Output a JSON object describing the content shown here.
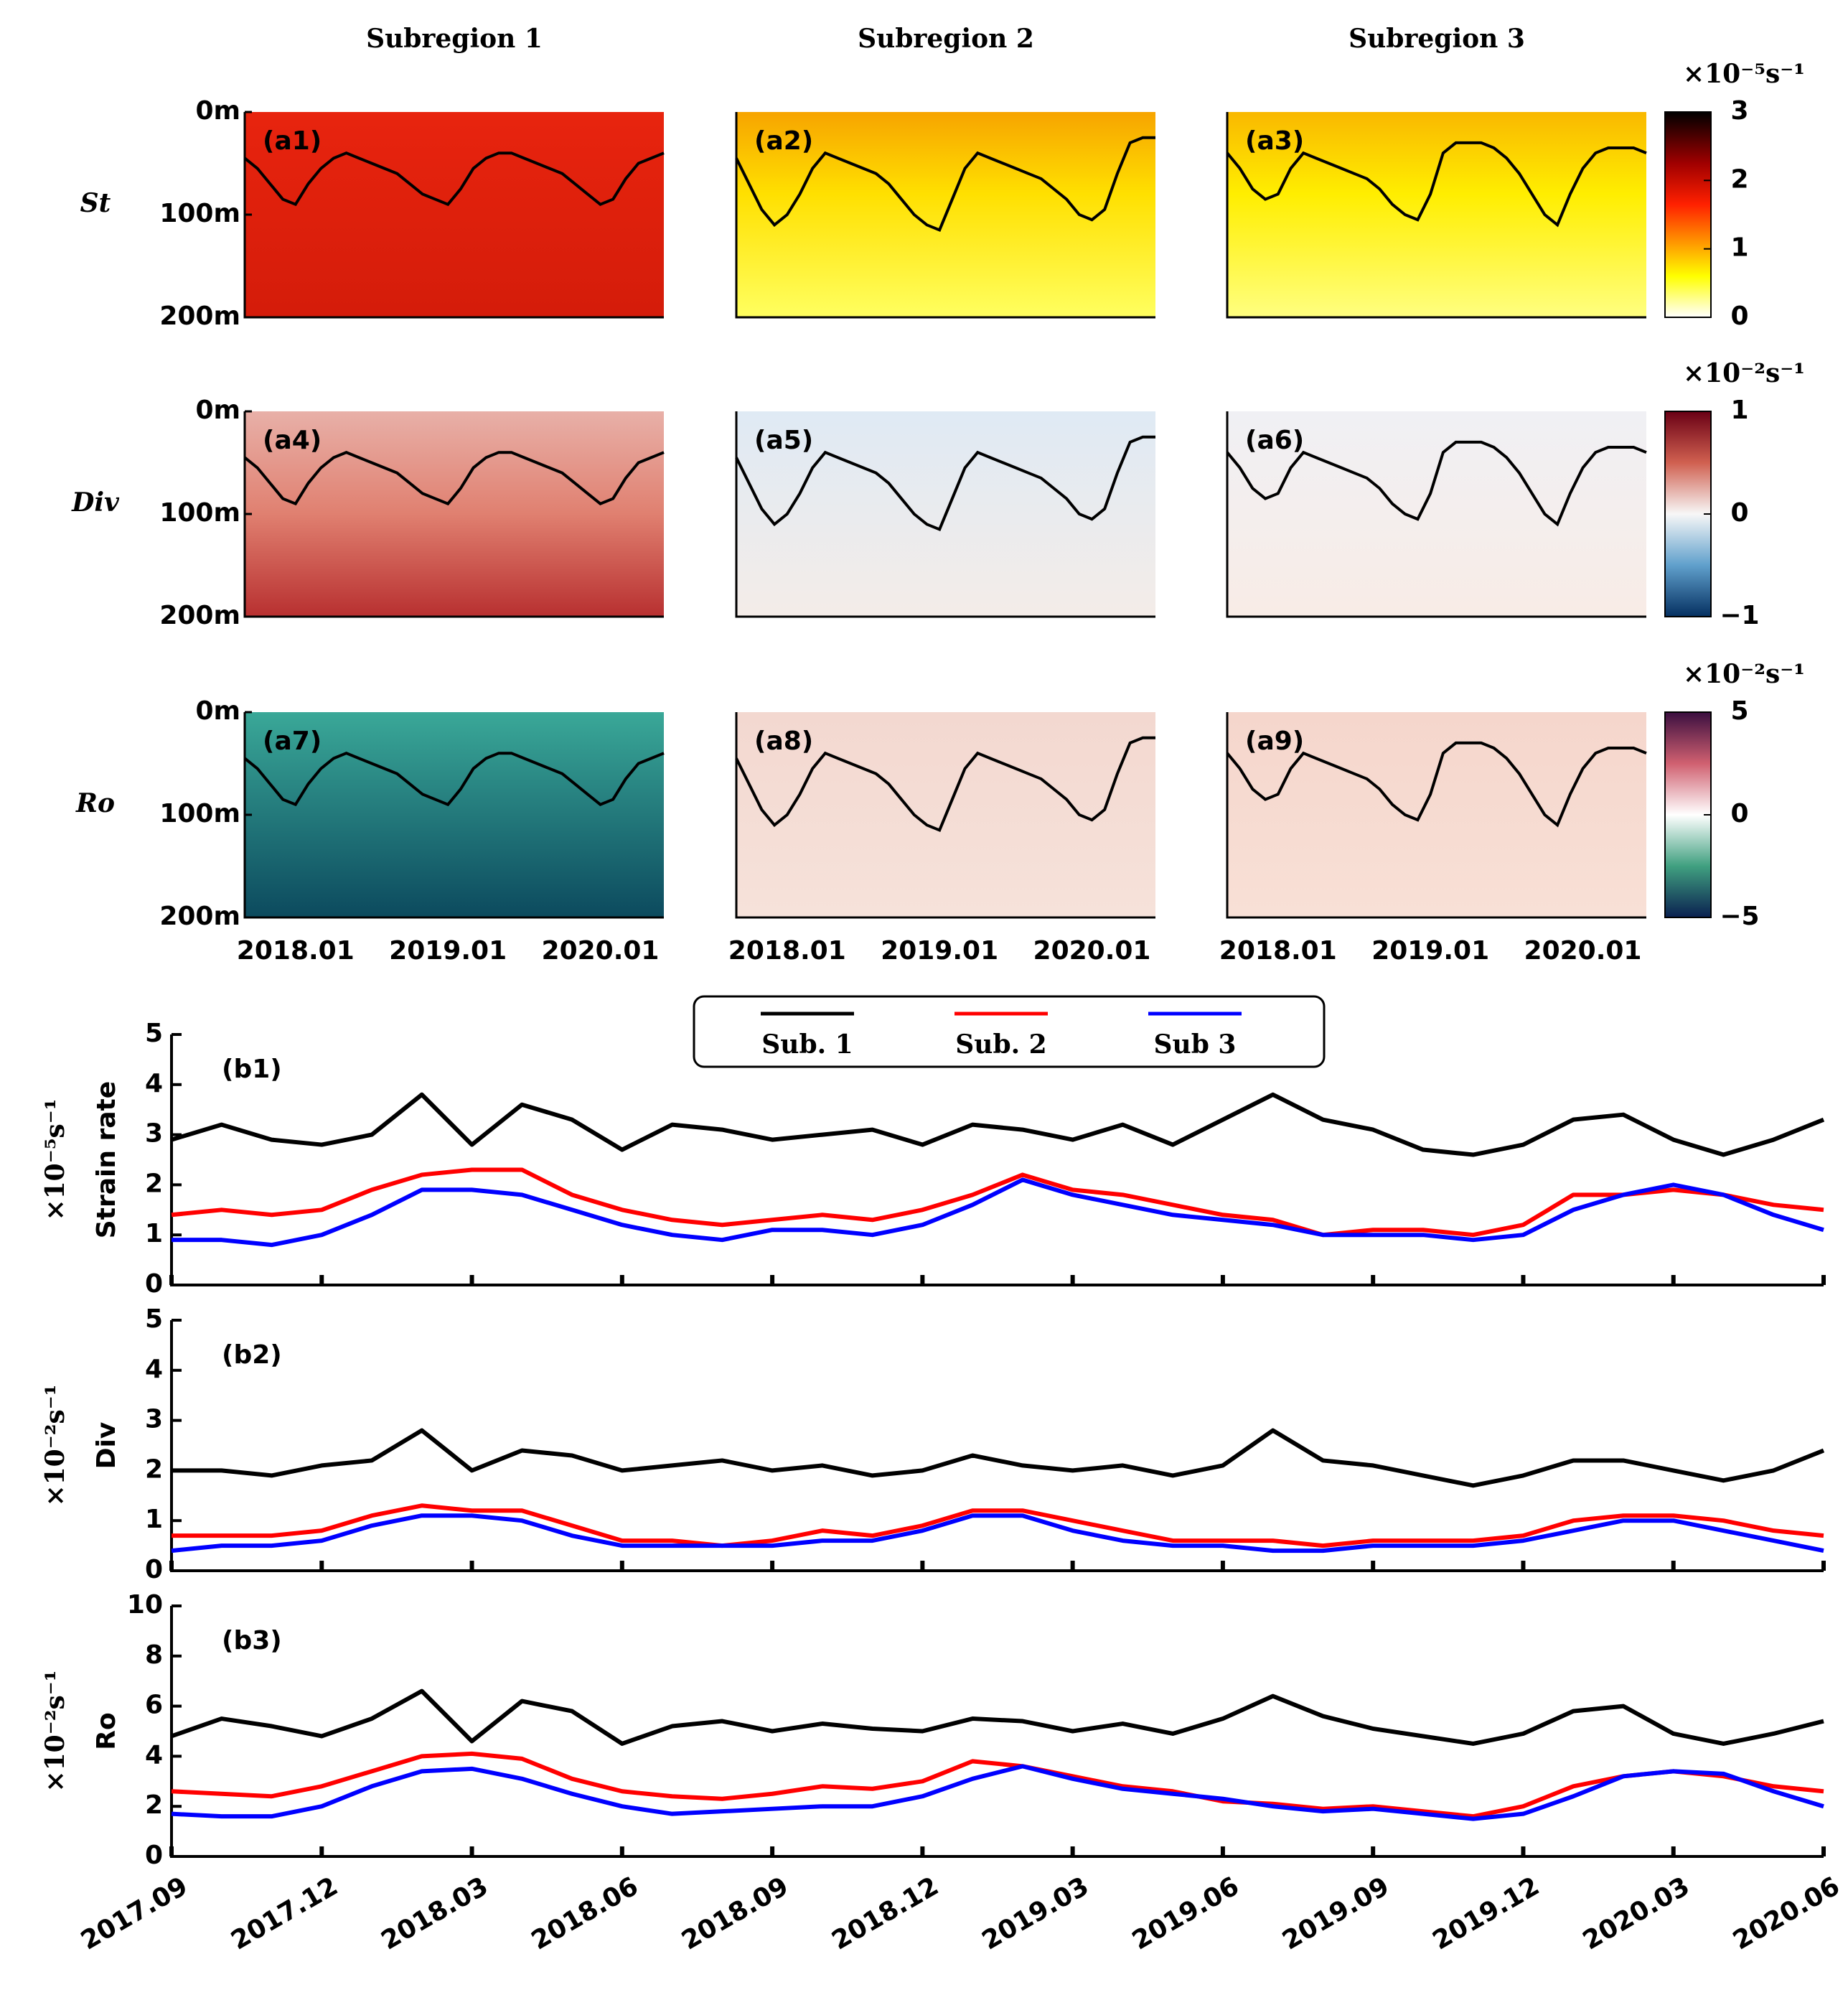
{
  "chart_data": [
    {
      "type": "heatmap",
      "titles": [
        "Subregion 1",
        "Subregion 2",
        "Subregion 3"
      ],
      "row_labels": [
        "St",
        "Div",
        "Ro"
      ],
      "panel_labels": [
        "(a1)",
        "(a2)",
        "(a3)",
        "(a4)",
        "(a5)",
        "(a6)",
        "(a7)",
        "(a8)",
        "(a9)"
      ],
      "categories": [
        null,
        null,
        null,
        null,
        "2018.01",
        null,
        null,
        null,
        null,
        null,
        null,
        null,
        null,
        null,
        null,
        null,
        "2019.01",
        null,
        null,
        null,
        null,
        null,
        null,
        null,
        null,
        null,
        null,
        null,
        "2020.01",
        null,
        null,
        null,
        null,
        null
      ],
      "ylim": [
        0,
        200
      ],
      "yticks": [
        {
          "value": 0,
          "label": "0m"
        },
        {
          "value": 100,
          "label": "100m"
        },
        {
          "value": 200,
          "label": "200m"
        }
      ],
      "mld": [
        {
          "values": [
            45,
            55,
            70,
            85,
            90,
            70,
            55,
            45,
            40,
            45,
            50,
            55,
            60,
            70,
            80,
            85,
            90,
            75,
            55,
            45,
            40,
            40,
            45,
            50,
            55,
            60,
            70,
            80,
            90,
            85,
            65,
            50,
            45,
            40
          ]
        },
        {
          "values": [
            45,
            70,
            95,
            110,
            100,
            80,
            55,
            40,
            45,
            50,
            55,
            60,
            70,
            85,
            100,
            110,
            115,
            85,
            55,
            40,
            45,
            50,
            55,
            60,
            65,
            75,
            85,
            100,
            105,
            95,
            60,
            30,
            25,
            25
          ]
        },
        {
          "values": [
            40,
            55,
            75,
            85,
            80,
            55,
            40,
            45,
            50,
            55,
            60,
            65,
            75,
            90,
            100,
            105,
            80,
            40,
            30,
            30,
            30,
            35,
            45,
            60,
            80,
            100,
            110,
            80,
            55,
            40,
            35,
            35,
            35,
            40
          ]
        }
      ],
      "colorbars": [
        {
          "unit": "×10⁻⁵s⁻¹",
          "lim": [
            0,
            3
          ],
          "ticks": [
            0,
            1,
            2,
            3
          ]
        },
        {
          "unit": "×10⁻²s⁻¹",
          "lim": [
            -1,
            1
          ],
          "ticks": [
            {
              "value": -1,
              "label": "−1"
            },
            0,
            1
          ]
        },
        {
          "unit": "×10⁻²s⁻¹",
          "lim": [
            -5,
            5
          ],
          "ticks": [
            {
              "value": -5,
              "label": "−5"
            },
            0,
            5
          ]
        }
      ]
    },
    {
      "type": "line",
      "series": [
        {
          "name": "Sub. 1",
          "color": "#000000"
        },
        {
          "name": "Sub. 2",
          "color": "#ff0000"
        },
        {
          "name": "Sub 3",
          "color": "#0000ff"
        }
      ],
      "categories": [
        "2017.09",
        null,
        null,
        "2017.12",
        null,
        null,
        "2018.03",
        null,
        null,
        "2018.06",
        null,
        null,
        "2018.09",
        null,
        null,
        "2018.12",
        null,
        null,
        "2019.03",
        null,
        null,
        "2019.06",
        null,
        null,
        "2019.09",
        null,
        null,
        "2019.12",
        null,
        null,
        "2020.03",
        null,
        null,
        "2020.06"
      ],
      "panels": [
        {
          "label": "(b1)",
          "ylabel": "Strain rate",
          "yunit": "×10⁻⁵s⁻¹",
          "ylim": [
            0,
            5
          ],
          "yticks": [
            0,
            1,
            2,
            3,
            4,
            5
          ],
          "values": [
            [
              2.9,
              3.2,
              2.9,
              2.8,
              3.0,
              3.8,
              2.8,
              3.6,
              3.3,
              2.7,
              3.2,
              3.1,
              2.9,
              3.0,
              3.1,
              2.8,
              3.2,
              3.1,
              2.9,
              3.2,
              2.8,
              3.3,
              3.8,
              3.3,
              3.1,
              2.7,
              2.6,
              2.8,
              3.3,
              3.4,
              2.9,
              2.6,
              2.9,
              3.3
            ],
            [
              1.4,
              1.5,
              1.4,
              1.5,
              1.9,
              2.2,
              2.3,
              2.3,
              1.8,
              1.5,
              1.3,
              1.2,
              1.3,
              1.4,
              1.3,
              1.5,
              1.8,
              2.2,
              1.9,
              1.8,
              1.6,
              1.4,
              1.3,
              1.0,
              1.1,
              1.1,
              1.0,
              1.2,
              1.8,
              1.8,
              1.9,
              1.8,
              1.6,
              1.5
            ],
            [
              0.9,
              0.9,
              0.8,
              1.0,
              1.4,
              1.9,
              1.9,
              1.8,
              1.5,
              1.2,
              1.0,
              0.9,
              1.1,
              1.1,
              1.0,
              1.2,
              1.6,
              2.1,
              1.8,
              1.6,
              1.4,
              1.3,
              1.2,
              1.0,
              1.0,
              1.0,
              0.9,
              1.0,
              1.5,
              1.8,
              2.0,
              1.8,
              1.4,
              1.1
            ]
          ]
        },
        {
          "label": "(b2)",
          "ylabel": "Div",
          "yunit": "×10⁻²s⁻¹",
          "ylim": [
            0,
            5
          ],
          "yticks": [
            0,
            1,
            2,
            3,
            4,
            5
          ],
          "values": [
            [
              2.0,
              2.0,
              1.9,
              2.1,
              2.2,
              2.8,
              2.0,
              2.4,
              2.3,
              2.0,
              2.1,
              2.2,
              2.0,
              2.1,
              1.9,
              2.0,
              2.3,
              2.1,
              2.0,
              2.1,
              1.9,
              2.1,
              2.8,
              2.2,
              2.1,
              1.9,
              1.7,
              1.9,
              2.2,
              2.2,
              2.0,
              1.8,
              2.0,
              2.4
            ],
            [
              0.7,
              0.7,
              0.7,
              0.8,
              1.1,
              1.3,
              1.2,
              1.2,
              0.9,
              0.6,
              0.6,
              0.5,
              0.6,
              0.8,
              0.7,
              0.9,
              1.2,
              1.2,
              1.0,
              0.8,
              0.6,
              0.6,
              0.6,
              0.5,
              0.6,
              0.6,
              0.6,
              0.7,
              1.0,
              1.1,
              1.1,
              1.0,
              0.8,
              0.7
            ],
            [
              0.4,
              0.5,
              0.5,
              0.6,
              0.9,
              1.1,
              1.1,
              1.0,
              0.7,
              0.5,
              0.5,
              0.5,
              0.5,
              0.6,
              0.6,
              0.8,
              1.1,
              1.1,
              0.8,
              0.6,
              0.5,
              0.5,
              0.4,
              0.4,
              0.5,
              0.5,
              0.5,
              0.6,
              0.8,
              1.0,
              1.0,
              0.8,
              0.6,
              0.4
            ]
          ]
        },
        {
          "label": "(b3)",
          "ylabel": "Ro",
          "yunit": "×10⁻²s⁻¹",
          "ylim": [
            0,
            10
          ],
          "yticks": [
            0,
            2,
            4,
            6,
            8,
            10
          ],
          "values": [
            [
              4.8,
              5.5,
              5.2,
              4.8,
              5.5,
              6.6,
              4.6,
              6.2,
              5.8,
              4.5,
              5.2,
              5.4,
              5.0,
              5.3,
              5.1,
              5.0,
              5.5,
              5.4,
              5.0,
              5.3,
              4.9,
              5.5,
              6.4,
              5.6,
              5.1,
              4.8,
              4.5,
              4.9,
              5.8,
              6.0,
              4.9,
              4.5,
              4.9,
              5.4
            ],
            [
              2.6,
              2.5,
              2.4,
              2.8,
              3.4,
              4.0,
              4.1,
              3.9,
              3.1,
              2.6,
              2.4,
              2.3,
              2.5,
              2.8,
              2.7,
              3.0,
              3.8,
              3.6,
              3.2,
              2.8,
              2.6,
              2.2,
              2.1,
              1.9,
              2.0,
              1.8,
              1.6,
              2.0,
              2.8,
              3.2,
              3.4,
              3.2,
              2.8,
              2.6
            ],
            [
              1.7,
              1.6,
              1.6,
              2.0,
              2.8,
              3.4,
              3.5,
              3.1,
              2.5,
              2.0,
              1.7,
              1.8,
              1.9,
              2.0,
              2.0,
              2.4,
              3.1,
              3.6,
              3.1,
              2.7,
              2.5,
              2.3,
              2.0,
              1.8,
              1.9,
              1.7,
              1.5,
              1.7,
              2.4,
              3.2,
              3.4,
              3.3,
              2.6,
              2.0
            ]
          ]
        }
      ]
    }
  ]
}
